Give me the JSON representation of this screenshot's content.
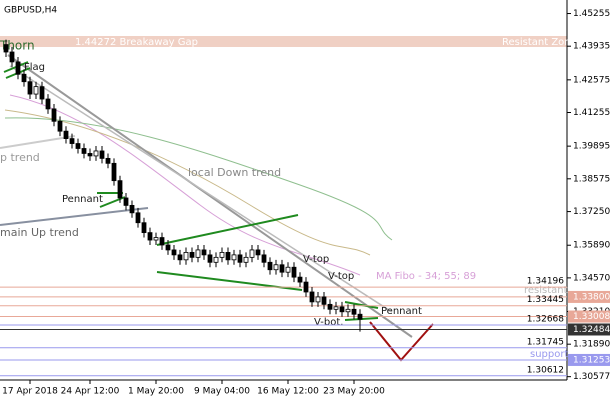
{
  "chart_data": {
    "type": "candlestick",
    "title": "GBPUSD,H4",
    "categories": [
      null,
      null,
      null,
      null,
      "17 Apr 2018",
      null,
      null,
      null,
      null,
      null,
      null,
      null,
      null,
      null,
      "24 Apr 12:00",
      null,
      null,
      null,
      null,
      null,
      null,
      null,
      null,
      null,
      null,
      "1 May 20:00",
      null,
      null,
      null,
      null,
      null,
      null,
      null,
      null,
      null,
      null,
      "9 May 04:00",
      null,
      null,
      null,
      null,
      null,
      null,
      null,
      null,
      null,
      null,
      "16 May 12:00",
      null,
      null,
      null,
      null,
      null,
      null,
      null,
      null,
      null,
      null,
      "23 May 20:00",
      null
    ],
    "candles": [
      [
        1.44,
        1.442,
        1.435,
        1.437
      ],
      [
        1.437,
        1.439,
        1.431,
        1.433
      ],
      [
        1.433,
        1.435,
        1.426,
        1.428
      ],
      [
        1.428,
        1.43,
        1.423,
        1.425
      ],
      [
        1.425,
        1.427,
        1.418,
        1.42
      ],
      [
        1.42,
        1.425,
        1.418,
        1.423
      ],
      [
        1.423,
        1.425,
        1.416,
        1.418
      ],
      [
        1.418,
        1.42,
        1.412,
        1.414
      ],
      [
        1.414,
        1.416,
        1.407,
        1.409
      ],
      [
        1.409,
        1.411,
        1.403,
        1.405
      ],
      [
        1.405,
        1.407,
        1.4,
        1.402
      ],
      [
        1.402,
        1.404,
        1.398,
        1.4
      ],
      [
        1.4,
        1.402,
        1.396,
        1.398
      ],
      [
        1.398,
        1.4,
        1.394,
        1.396
      ],
      [
        1.396,
        1.398,
        1.393,
        1.395
      ],
      [
        1.395,
        1.399,
        1.393,
        1.397
      ],
      [
        1.397,
        1.399,
        1.392,
        1.394
      ],
      [
        1.394,
        1.396,
        1.39,
        1.392
      ],
      [
        1.392,
        1.394,
        1.383,
        1.385
      ],
      [
        1.385,
        1.387,
        1.376,
        1.378
      ],
      [
        1.378,
        1.38,
        1.373,
        1.375
      ],
      [
        1.375,
        1.377,
        1.37,
        1.372
      ],
      [
        1.372,
        1.374,
        1.366,
        1.368
      ],
      [
        1.368,
        1.37,
        1.362,
        1.364
      ],
      [
        1.364,
        1.366,
        1.359,
        1.361
      ],
      [
        1.361,
        1.364,
        1.359,
        1.362
      ],
      [
        1.362,
        1.364,
        1.357,
        1.359
      ],
      [
        1.359,
        1.361,
        1.355,
        1.357
      ],
      [
        1.357,
        1.359,
        1.353,
        1.355
      ],
      [
        1.355,
        1.357,
        1.351,
        1.353
      ],
      [
        1.353,
        1.358,
        1.351,
        1.356
      ],
      [
        1.356,
        1.358,
        1.352,
        1.354
      ],
      [
        1.354,
        1.359,
        1.352,
        1.357
      ],
      [
        1.357,
        1.359,
        1.353,
        1.355
      ],
      [
        1.355,
        1.357,
        1.35,
        1.352
      ],
      [
        1.352,
        1.356,
        1.35,
        1.354
      ],
      [
        1.354,
        1.358,
        1.352,
        1.356
      ],
      [
        1.356,
        1.358,
        1.351,
        1.353
      ],
      [
        1.353,
        1.357,
        1.351,
        1.355
      ],
      [
        1.355,
        1.357,
        1.35,
        1.352
      ],
      [
        1.352,
        1.356,
        1.35,
        1.354
      ],
      [
        1.354,
        1.359,
        1.352,
        1.357
      ],
      [
        1.357,
        1.359,
        1.353,
        1.355
      ],
      [
        1.355,
        1.357,
        1.35,
        1.352
      ],
      [
        1.352,
        1.354,
        1.347,
        1.349
      ],
      [
        1.349,
        1.353,
        1.347,
        1.351
      ],
      [
        1.351,
        1.353,
        1.346,
        1.348
      ],
      [
        1.348,
        1.352,
        1.346,
        1.35
      ],
      [
        1.35,
        1.352,
        1.344,
        1.346
      ],
      [
        1.346,
        1.348,
        1.342,
        1.344
      ],
      [
        1.344,
        1.346,
        1.338,
        1.34
      ],
      [
        1.34,
        1.342,
        1.334,
        1.336
      ],
      [
        1.336,
        1.34,
        1.334,
        1.338
      ],
      [
        1.338,
        1.34,
        1.333,
        1.335
      ],
      [
        1.335,
        1.337,
        1.331,
        1.333
      ],
      [
        1.333,
        1.336,
        1.331,
        1.334
      ],
      [
        1.334,
        1.336,
        1.33,
        1.332
      ],
      [
        1.332,
        1.335,
        1.33,
        1.333
      ],
      [
        1.333,
        1.335,
        1.329,
        1.331
      ],
      [
        1.331,
        1.333,
        1.324,
        1.329
      ]
    ],
    "ylim": [
      1.302,
      1.456
    ],
    "yticks": [
      1.45255,
      1.43935,
      1.42575,
      1.41255,
      1.39895,
      1.38575,
      {
        "value": 1.3725,
        "label": "1.37250"
      },
      {
        "value": 1.3589,
        "label": "1.35890"
      },
      {
        "value": 1.3457,
        "label": "1.34570"
      },
      {
        "value": 1.3321,
        "label": "1.33210"
      },
      {
        "value": 1.3189,
        "label": "1.31890"
      },
      1.30577
    ],
    "levels": [
      {
        "value": 1.34196,
        "color": "#e8a898",
        "boxed": false
      },
      {
        "value": 1.338,
        "label": "1.33800",
        "color": "#e8a898",
        "boxed": true
      },
      {
        "value": 1.33445,
        "color": "#e8a898",
        "boxed": false
      },
      {
        "value": 1.33008,
        "color": "#e8a898",
        "boxed": true
      },
      {
        "value": 1.32668,
        "color": "#9999ee",
        "boxed": false
      },
      {
        "value": 1.32484,
        "color": "#333333",
        "boxed": true
      },
      {
        "value": 1.31745,
        "color": "#9999ee",
        "boxed": false
      },
      {
        "value": 1.31253,
        "color": "#9999ee",
        "boxed": true
      },
      {
        "value": 1.30612,
        "color": "#9999ee",
        "boxed": false
      }
    ],
    "annotations": [
      "1.44272 Breakaway Gap",
      "Resistant Zone",
      "Thorn",
      "Flag",
      "p trend",
      "local Down trend",
      "Pennant",
      "main Up trend",
      "V-top",
      "V-top",
      "MA Fibo - 34; 55; 89",
      "Pennant",
      "V-bot.",
      "resistant",
      "support"
    ]
  }
}
